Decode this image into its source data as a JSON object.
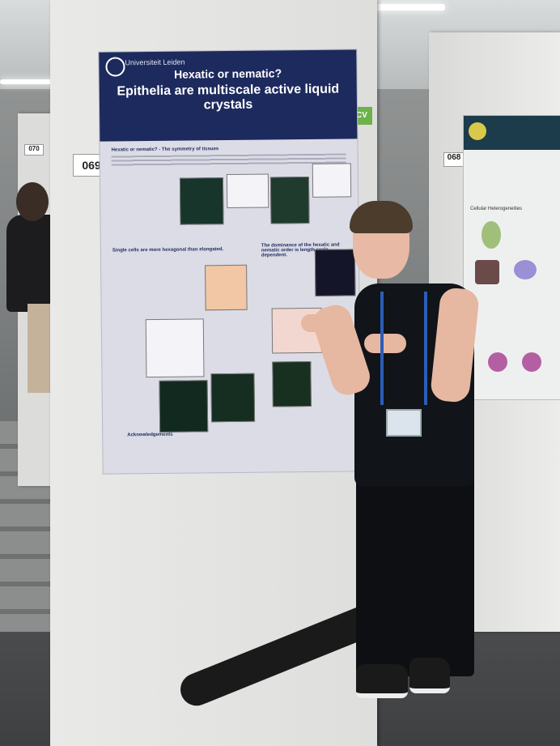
{
  "scene": {
    "poster": {
      "university": "Universiteit Leiden",
      "title_line1": "Hexatic or nematic?",
      "title_line2": "Epithelia are multiscale active liquid crystals",
      "sections": [
        "Hexatic or nematic? - The symmetry of tissues",
        "Single cells are more hexagonal than elongated.",
        "The dominance of the hexatic and nematic order is length scale dependent.",
        "Acknowledgements"
      ]
    },
    "board_numbers": {
      "left": "069",
      "right": "068",
      "far_left": "070"
    },
    "right_poster": {
      "section_label": "Cellular Heterogeneities"
    },
    "cv_tag": "CV"
  }
}
